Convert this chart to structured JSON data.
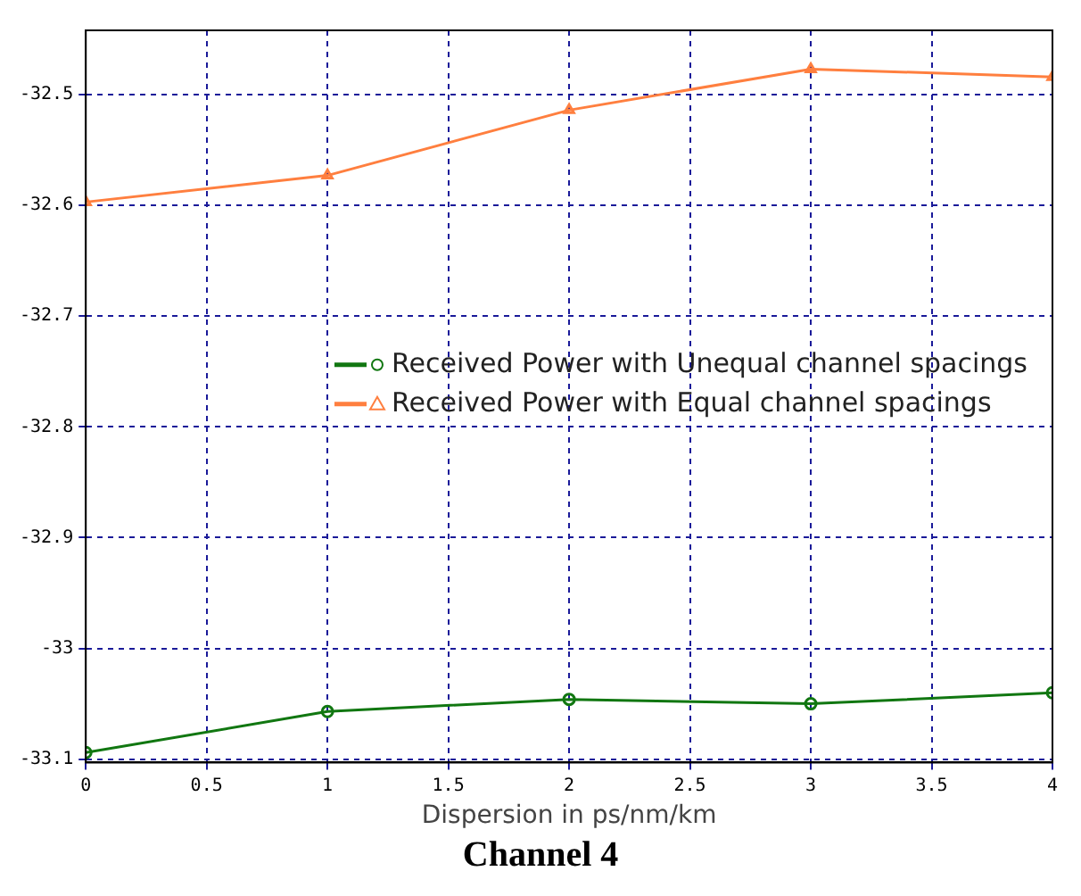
{
  "chart_data": {
    "type": "line",
    "title": "Channel 4",
    "xlabel": "Dispersion in ps/nm/km",
    "x": [
      0,
      1,
      2,
      3,
      4
    ],
    "series": [
      {
        "name": "Received Power with Unequal channel spacings",
        "color": "#117711",
        "marker": "circle",
        "values": [
          -33.094,
          -33.057,
          -33.046,
          -33.05,
          -33.04
        ]
      },
      {
        "name": "Received Power with Equal channel spacings",
        "color": "#ff7f3f",
        "marker": "triangle",
        "values": [
          -32.597,
          -32.573,
          -32.514,
          -32.477,
          -32.484
        ]
      }
    ],
    "xlim": [
      0,
      4
    ],
    "xticks": [
      0,
      0.5,
      1,
      1.5,
      2,
      2.5,
      3,
      3.5,
      4
    ],
    "ylim": [
      -33.103,
      -32.442
    ],
    "yticks": [
      -33.1,
      -33,
      -32.9,
      -32.8,
      -32.7,
      -32.6,
      -32.5
    ],
    "grid": true,
    "legend": "right",
    "line_style": "solid"
  }
}
